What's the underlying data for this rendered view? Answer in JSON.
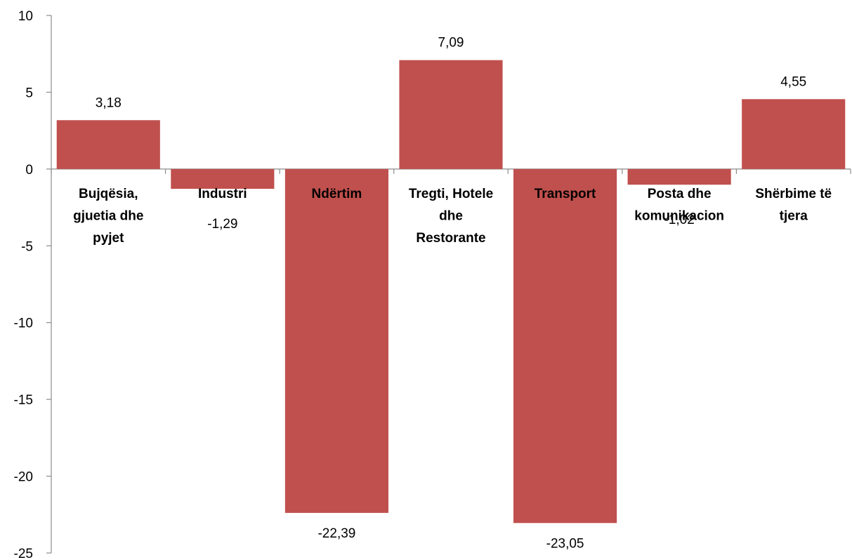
{
  "chart_data": {
    "type": "bar",
    "title": "",
    "xlabel": "",
    "ylabel": "",
    "ylim": [
      -25,
      10
    ],
    "yticks": [
      10,
      5,
      0,
      -5,
      -10,
      -15,
      -20,
      -25
    ],
    "grid": false,
    "legend": "none",
    "bar_color": "#C0504D",
    "categories": [
      [
        "Bujqësia,",
        "gjuetia dhe",
        "pyjet"
      ],
      [
        "Industri"
      ],
      [
        "Ndërtim"
      ],
      [
        "Tregti, Hotele",
        "dhe",
        "Restorante"
      ],
      [
        "Transport"
      ],
      [
        "Posta dhe",
        "komunikacion"
      ],
      [
        "Shërbime të",
        "tjera"
      ]
    ],
    "values": [
      3.18,
      -1.29,
      -22.39,
      7.09,
      -23.05,
      -1.02,
      4.55
    ],
    "value_labels": [
      "3,18",
      "-1,29",
      "-22,39",
      "7,09",
      "-23,05",
      "-1,02",
      "4,55"
    ]
  }
}
